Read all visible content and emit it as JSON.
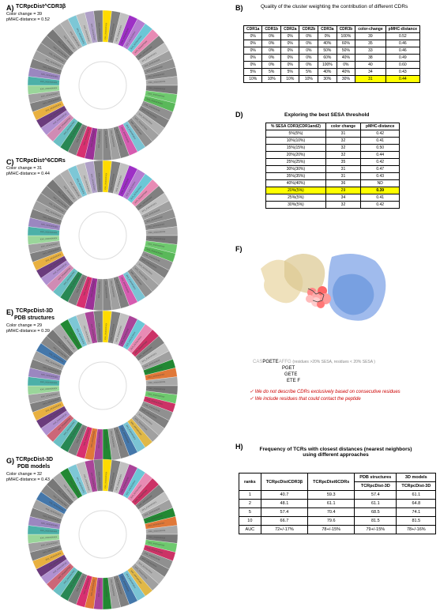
{
  "panelA": {
    "label": "A)",
    "title": "TCRpcDist^CDR3β",
    "sub1": "Color change = 39",
    "sub2": "pMHC-distance = 0.52"
  },
  "panelB": {
    "label": "B)",
    "title": "Quality of the cluster weighting the contribution of different CDRs",
    "headers": [
      "CDR1a",
      "CDR1b",
      "CDR2a",
      "CDR2b",
      "CDR3a",
      "CDR3b",
      "color-change",
      "pMHC-distance"
    ],
    "rows": [
      [
        "0%",
        "0%",
        "0%",
        "0%",
        "0%",
        "100%",
        "39",
        "0.52"
      ],
      [
        "0%",
        "0%",
        "0%",
        "0%",
        "40%",
        "60%",
        "35",
        "0.46"
      ],
      [
        "0%",
        "0%",
        "0%",
        "0%",
        "50%",
        "50%",
        "33",
        "0.46"
      ],
      [
        "0%",
        "0%",
        "0%",
        "0%",
        "60%",
        "40%",
        "38",
        "0.49"
      ],
      [
        "0%",
        "0%",
        "0%",
        "0%",
        "100%",
        "0%",
        "40",
        "0.60"
      ],
      [
        "5%",
        "5%",
        "5%",
        "5%",
        "40%",
        "40%",
        "34",
        "0.43"
      ],
      [
        "10%",
        "10%",
        "10%",
        "10%",
        "30%",
        "30%",
        "31",
        "0.44"
      ]
    ],
    "highlightRow": 6
  },
  "panelC": {
    "label": "C)",
    "title": "TCRpcDist^6CDRs",
    "sub1": "Color change = 31",
    "sub2": "pMHC-distance = 0.44"
  },
  "panelD": {
    "label": "D)",
    "title": "Exploring the best SESA threshold",
    "headers": [
      "% SESA CDR3(CDR1and2)",
      "color change",
      "pMHC-distance"
    ],
    "rows": [
      [
        "5%(5%)",
        "31",
        "0.42"
      ],
      [
        "10%(10%)",
        "32",
        "0.41"
      ],
      [
        "15%(15%)",
        "32",
        "0.50"
      ],
      [
        "20%(20%)",
        "32",
        "0.44"
      ],
      [
        "25%(25%)",
        "35",
        "0.42"
      ],
      [
        "30%(30%)",
        "31",
        "0.47"
      ],
      [
        "35%(35%)",
        "31",
        "0.43"
      ],
      [
        "40%(40%)",
        "36",
        "ND"
      ],
      [
        "20%(5%)",
        "29",
        "0.39"
      ],
      [
        "25%(5%)",
        "34",
        "0.41"
      ],
      [
        "30%(5%)",
        "32",
        "0.42"
      ]
    ],
    "highlightRow": 8
  },
  "panelE": {
    "label": "E)",
    "title": "TCRpcDist-3D",
    "titleLine2": "PDB structures",
    "sub1": "Color change = 29",
    "sub2": "pMHC-distance = 0.39"
  },
  "panelF": {
    "label": "F)",
    "seq_gray1": "CAS",
    "seq_black": "PGETE",
    "seq_gray2": "AFFG",
    "seq_label": "(residues >20% SESA, residues < 20% SESA )",
    "line2": "PGET",
    "line3": "GETE",
    "line4": "ETE F",
    "note1": "We do not describe CDRs exclusively based on consecutive residues",
    "note2": "We include residues that could contact the peptide"
  },
  "panelG": {
    "label": "G)",
    "title": "TCRpcDist-3D",
    "titleLine2": "PDB models",
    "sub1": "Color change = 32",
    "sub2": "pMHC-distance = 0.43"
  },
  "panelH": {
    "label": "H)",
    "title": "Frequency of TCRs with closest distances (nearest neighbors) using different approaches",
    "superHeaders": [
      "",
      "",
      "",
      "PDB structures",
      "3D models"
    ],
    "headers": [
      "ranks",
      "TCRpcDistCDR3β",
      "TCRpcDist6CDRs",
      "TCRpcDist-3D",
      "TCRpcDist-3D"
    ],
    "rows": [
      [
        "1",
        "40.7",
        "59.3",
        "57.4",
        "61.1"
      ],
      [
        "2",
        "48.1",
        "61.1",
        "61.1",
        "64.8"
      ],
      [
        "5",
        "57.4",
        "70.4",
        "68.5",
        "74.1"
      ],
      [
        "10",
        "66.7",
        "79.6",
        "81.5",
        "81.5"
      ],
      [
        "AUC",
        "72+/-17%",
        "78+/-15%",
        "79+/-15%",
        "78+/-16%"
      ]
    ]
  },
  "wheel_colors": [
    "#ffdb00",
    "#808080",
    "#c0c0c0",
    "#9e30c6",
    "#b57dd0",
    "#6bc7d6",
    "#e88bb4",
    "#808080",
    "#c0c0c0",
    "#a0a0a0",
    "#909090",
    "#888888",
    "#a8a8a8",
    "#787878",
    "#6ec96e",
    "#5ab85a",
    "#909090",
    "#808080",
    "#b0b0b0",
    "#a0a0a0",
    "#909090",
    "#7ac4d4",
    "#d65bb0",
    "#808080",
    "#a0a0a0",
    "#888888",
    "#909090",
    "#9b3097",
    "#d83070",
    "#808080",
    "#288854",
    "#6bbfc4",
    "#d08bb4",
    "#b090d0",
    "#6b3b7d",
    "#e8b040",
    "#808080",
    "#a0a0a0",
    "#9ad69a",
    "#4cb0a8",
    "#9b87c0",
    "#808080",
    "#a0a0a0",
    "#909090",
    "#888888",
    "#787878",
    "#a8a8a8",
    "#b0b0b0",
    "#7dc7d6",
    "#c0c0c0",
    "#b0a0c8",
    "#808080"
  ],
  "wheelE_colors": [
    "#ffdb00",
    "#808080",
    "#c0c0c0",
    "#aa4499",
    "#6bc7d6",
    "#e88bb4",
    "#cc3366",
    "#808080",
    "#c0c0c0",
    "#a0a0a0",
    "#228833",
    "#e07838",
    "#a8a8a8",
    "#787878",
    "#6ec96e",
    "#cc3366",
    "#909090",
    "#808080",
    "#b0b0b0",
    "#a0a0a0",
    "#e0b848",
    "#7ac4d4",
    "#4477aa",
    "#808080",
    "#a0a0a0",
    "#228833",
    "#aa4499",
    "#e07838",
    "#d83070",
    "#808080",
    "#288854",
    "#6bbfc4",
    "#cc6677",
    "#b090d0",
    "#6b3b7d",
    "#e8b040",
    "#808080",
    "#a0a0a0",
    "#9ad69a",
    "#4cb0a8",
    "#9b87c0",
    "#808080",
    "#a0a0a0",
    "#4477aa",
    "#888888",
    "#787878",
    "#a8a8a8",
    "#228833",
    "#7dc7d6",
    "#c0c0c0",
    "#aa4499",
    "#808080"
  ]
}
